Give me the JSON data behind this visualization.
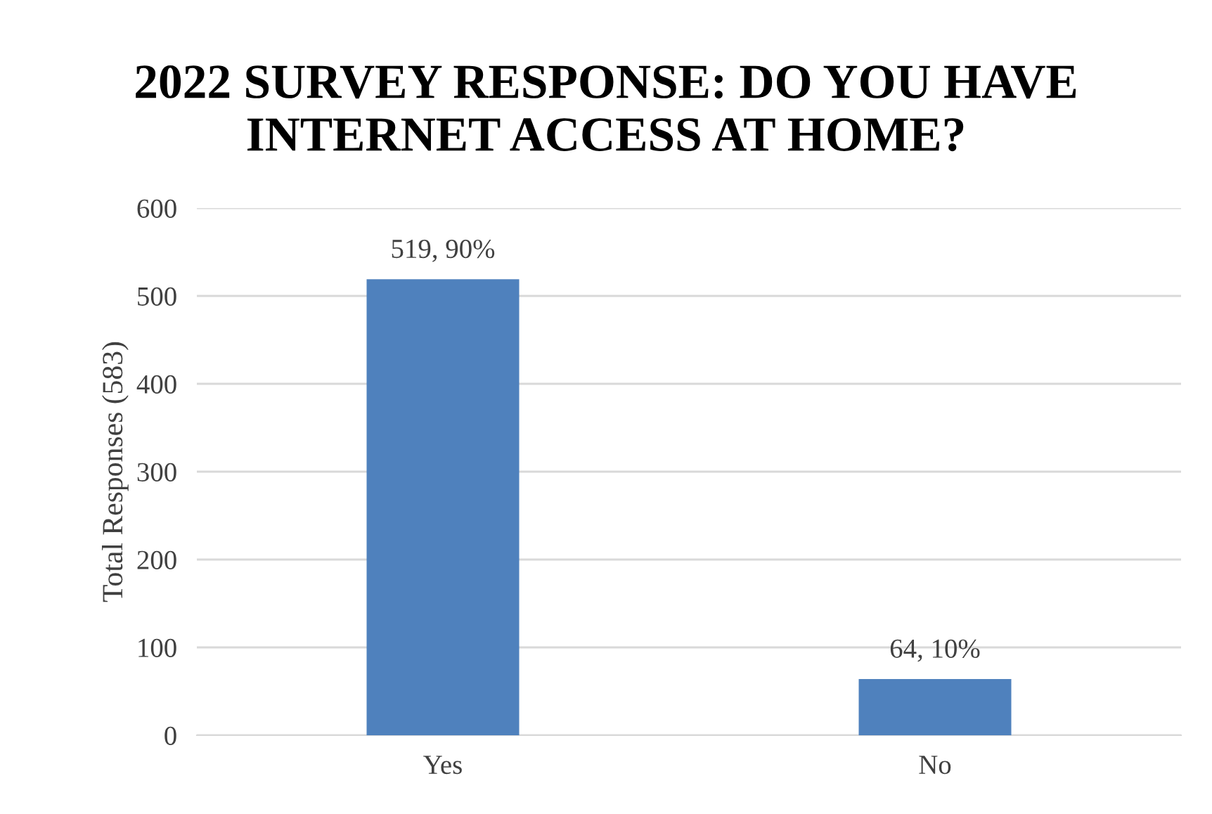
{
  "chart_data": {
    "type": "bar",
    "title": "2022 SURVEY RESPONSE: DO YOU HAVE INTERNET ACCESS AT HOME?",
    "ylabel": "Total Responses (583)",
    "categories": [
      "Yes",
      "No"
    ],
    "values": [
      519,
      64
    ],
    "value_labels": [
      "519, 90%",
      "64, 10%"
    ],
    "color": "#4f81bd",
    "ylim": [
      0,
      600
    ],
    "yticks": [
      0,
      100,
      200,
      300,
      400,
      500,
      600
    ],
    "grid": "y",
    "legend": false
  }
}
